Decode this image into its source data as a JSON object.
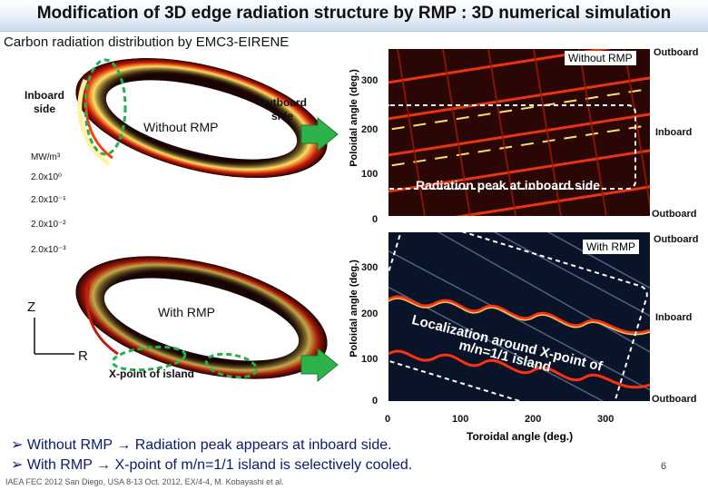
{
  "title": "Modification of 3D edge radiation structure by RMP : 3D numerical simulation",
  "subtitle": "Carbon radiation distribution by EMC3-EIRENE",
  "left": {
    "inboard_side": "Inboard side",
    "outboard_side": "Outboard side",
    "without_rmp": "Without RMP",
    "with_rmp": "With RMP",
    "colorbar_unit": "MW/m³",
    "colorbar_levels": [
      "2.0x10⁰",
      "2.0x10⁻¹",
      "2.0x10⁻²",
      "2.0x10⁻³"
    ],
    "axis_z": "Z",
    "axis_r": "R",
    "x_point_label": "X-point of island"
  },
  "right_top": {
    "panel_label": "Without RMP",
    "ylabel": "Poloidal angle (deg.)",
    "yticks": [
      "300",
      "200",
      "100",
      "0"
    ],
    "outboard_top": "Outboard",
    "inboard": "Inboard",
    "outboard_bottom": "Outboard",
    "annotation": "Radiation peak at inboard side"
  },
  "right_bottom": {
    "panel_label": "With RMP",
    "ylabel": "Poloidal angle (deg.)",
    "yticks": [
      "300",
      "200",
      "100",
      "0"
    ],
    "outboard_top": "Outboard",
    "inboard": "Inboard",
    "outboard_bottom": "Outboard",
    "annotation_line1": "Localization around X-point of",
    "annotation_line2": "m/n=1/1 island",
    "xticks": [
      "0",
      "100",
      "200",
      "300"
    ],
    "xlabel": "Toroidal angle (deg.)"
  },
  "bullets": [
    {
      "pre": "Without RMP ",
      "arrow": "→",
      "post": " Radiation peak appears at inboard side."
    },
    {
      "pre": "With RMP ",
      "arrow": "→",
      "post": " X-point of m/n=1/1 island is selectively cooled."
    }
  ],
  "footer": "IAEA FEC 2012 San Diego, USA 8-13 Oct. 2012, EX/4-4, M. Kobayashi et al.",
  "page_number": "6",
  "colors": {
    "arrow_fill": "#2db34a",
    "ellipse": "#22b14c",
    "dashed": "#ffffff",
    "text_blue": "#0a1a6e"
  }
}
